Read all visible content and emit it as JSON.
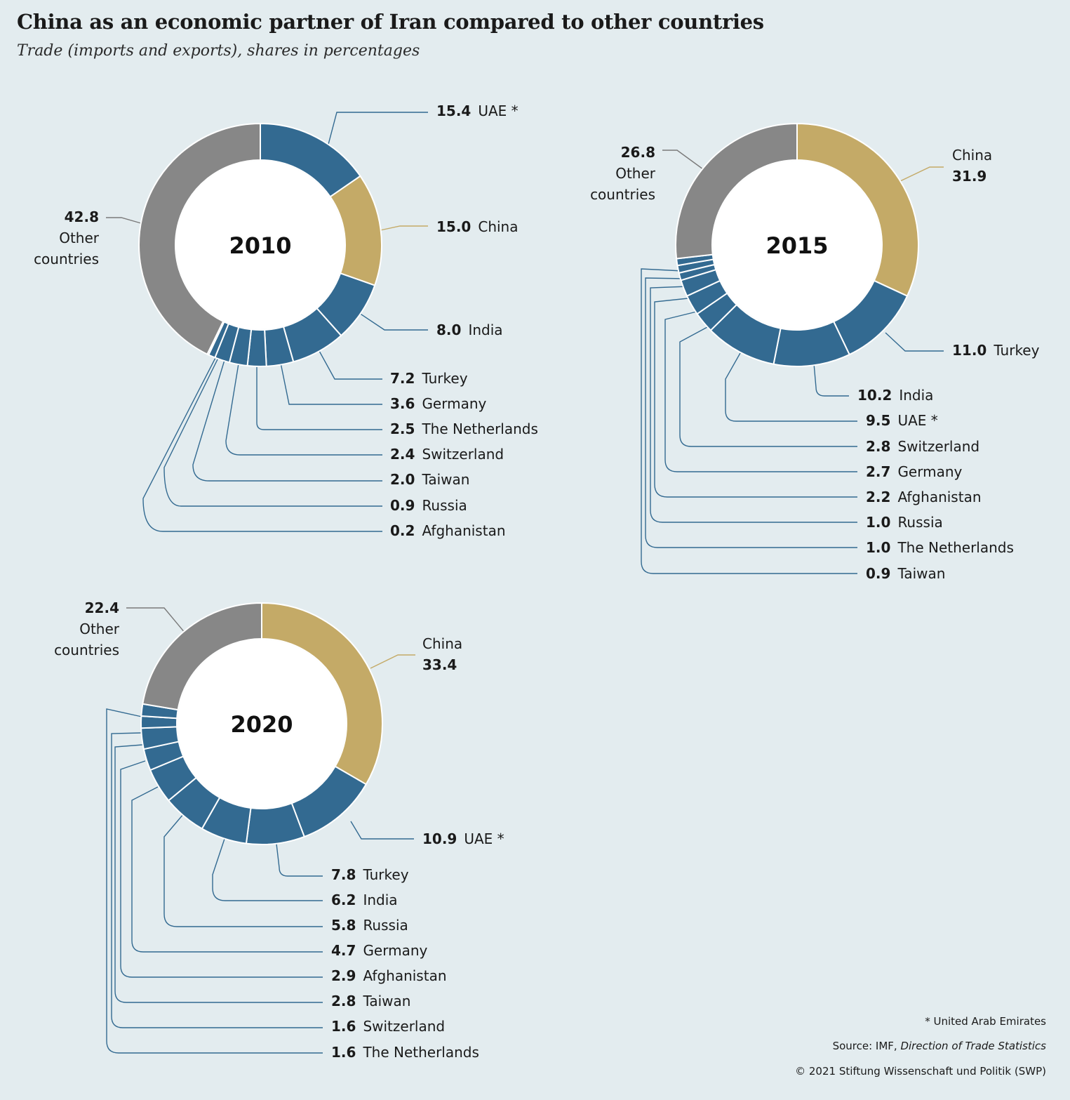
{
  "title": "China as an economic partner of Iran compared to other countries",
  "subtitle": "Trade (imports and exports), shares in percentages",
  "footnote": "* United Arab Emirates",
  "source_prefix": "Source: IMF, ",
  "source_title": "Direction of Trade Statistics",
  "copyright": "© 2021 Stiftung Wissenschaft und Politik (SWP)",
  "colors": {
    "china": "#c4aa67",
    "partner": "#336a91",
    "other": "#878787",
    "leader": "#336a91",
    "background": "#e3ecef"
  },
  "chart_data": [
    {
      "type": "pie",
      "title": "2010",
      "slices": [
        {
          "name": "UAE",
          "mark": "*",
          "value": 15.4,
          "kind": "partner"
        },
        {
          "name": "China",
          "value": 15.0,
          "kind": "china"
        },
        {
          "name": "India",
          "value": 8.0,
          "kind": "partner"
        },
        {
          "name": "Turkey",
          "value": 7.2,
          "kind": "partner"
        },
        {
          "name": "Germany",
          "value": 3.6,
          "kind": "partner"
        },
        {
          "name": "The Netherlands",
          "value": 2.5,
          "kind": "partner"
        },
        {
          "name": "Switzerland",
          "value": 2.4,
          "kind": "partner"
        },
        {
          "name": "Taiwan",
          "value": 2.0,
          "kind": "partner"
        },
        {
          "name": "Russia",
          "value": 0.9,
          "kind": "partner"
        },
        {
          "name": "Afghanistan",
          "value": 0.2,
          "kind": "partner"
        },
        {
          "name": "Other countries",
          "value": 42.8,
          "kind": "other"
        }
      ]
    },
    {
      "type": "pie",
      "title": "2015",
      "slices": [
        {
          "name": "China",
          "value": 31.9,
          "kind": "china"
        },
        {
          "name": "Turkey",
          "value": 11.0,
          "kind": "partner"
        },
        {
          "name": "India",
          "value": 10.2,
          "kind": "partner"
        },
        {
          "name": "UAE",
          "mark": "*",
          "value": 9.5,
          "kind": "partner"
        },
        {
          "name": "Switzerland",
          "value": 2.8,
          "kind": "partner"
        },
        {
          "name": "Germany",
          "value": 2.7,
          "kind": "partner"
        },
        {
          "name": "Afghanistan",
          "value": 2.2,
          "kind": "partner"
        },
        {
          "name": "Russia",
          "value": 1.0,
          "kind": "partner"
        },
        {
          "name": "The Netherlands",
          "value": 1.0,
          "kind": "partner"
        },
        {
          "name": "Taiwan",
          "value": 0.9,
          "kind": "partner"
        },
        {
          "name": "Other countries",
          "value": 26.8,
          "kind": "other"
        }
      ]
    },
    {
      "type": "pie",
      "title": "2020",
      "slices": [
        {
          "name": "China",
          "value": 33.4,
          "kind": "china"
        },
        {
          "name": "UAE",
          "mark": "*",
          "value": 10.9,
          "kind": "partner"
        },
        {
          "name": "Turkey",
          "value": 7.8,
          "kind": "partner"
        },
        {
          "name": "India",
          "value": 6.2,
          "kind": "partner"
        },
        {
          "name": "Russia",
          "value": 5.8,
          "kind": "partner"
        },
        {
          "name": "Germany",
          "value": 4.7,
          "kind": "partner"
        },
        {
          "name": "Afghanistan",
          "value": 2.9,
          "kind": "partner"
        },
        {
          "name": "Taiwan",
          "value": 2.8,
          "kind": "partner"
        },
        {
          "name": "Switzerland",
          "value": 1.6,
          "kind": "partner"
        },
        {
          "name": "The Netherlands",
          "value": 1.6,
          "kind": "partner"
        },
        {
          "name": "Other countries",
          "value": 22.4,
          "kind": "other"
        }
      ]
    }
  ]
}
